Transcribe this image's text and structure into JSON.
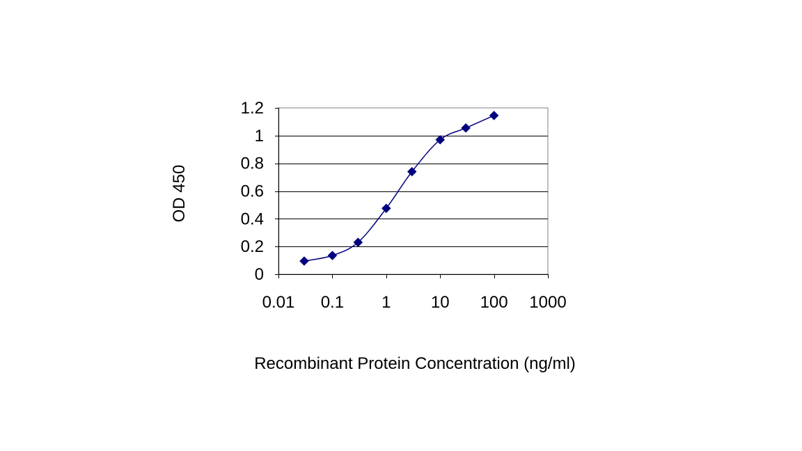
{
  "chart_data": {
    "type": "scatter",
    "title": "",
    "xlabel": "Recombinant Protein Concentration (ng/ml)",
    "ylabel": "OD 450",
    "x_scale": "log",
    "xlim": [
      0.01,
      1000
    ],
    "ylim": [
      0,
      1.2
    ],
    "x_ticks": [
      0.01,
      0.1,
      1,
      10,
      100,
      1000
    ],
    "x_tick_labels": [
      "0.01",
      "0.1",
      "1",
      "10",
      "100",
      "1000"
    ],
    "y_ticks": [
      0,
      0.2,
      0.4,
      0.6,
      0.8,
      1,
      1.2
    ],
    "y_tick_labels": [
      "0",
      "0.2",
      "0.4",
      "0.6",
      "0.8",
      "1",
      "1.2"
    ],
    "grid": "horizontal",
    "legend": "none",
    "series": [
      {
        "x": [
          0.03,
          0.1,
          0.3,
          1,
          3,
          10,
          30,
          100
        ],
        "y": [
          0.095,
          0.135,
          0.23,
          0.475,
          0.74,
          0.97,
          1.055,
          1.145
        ],
        "marker": "diamond",
        "line": "smooth",
        "color": "#000080"
      }
    ]
  }
}
